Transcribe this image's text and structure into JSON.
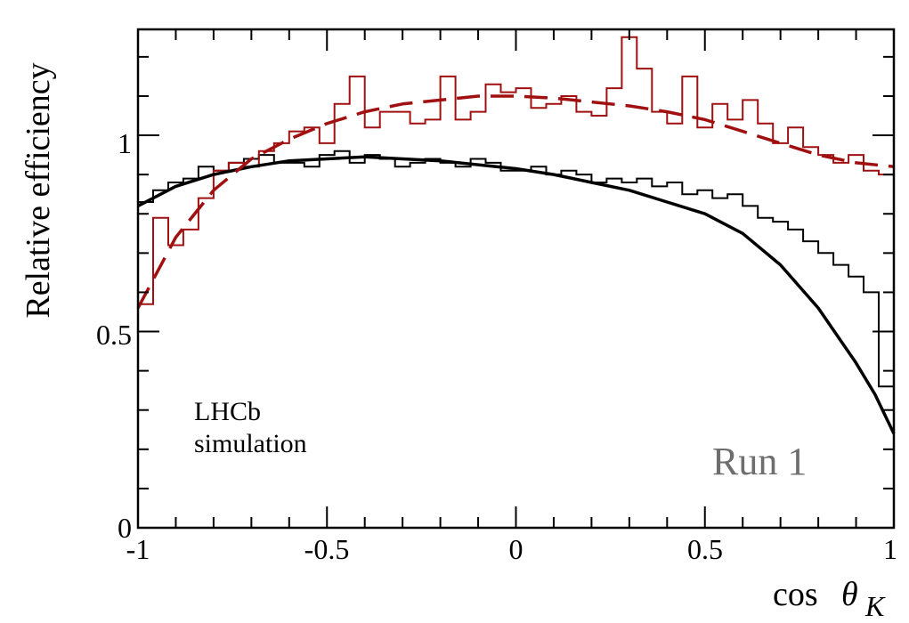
{
  "chart_data": {
    "type": "line",
    "xlabel": "cos",
    "xlabel_symbol": "θ",
    "xlabel_subscript": "K",
    "ylabel": "Relative efficiency",
    "xlim": [
      -1,
      1
    ],
    "ylim": [
      0,
      1.27
    ],
    "xticks": [
      -1,
      -0.5,
      0,
      0.5,
      1
    ],
    "xtick_labels": [
      "-1",
      "-0.5",
      "0",
      "0.5",
      "1"
    ],
    "yticks": [
      0,
      0.5,
      1
    ],
    "ytick_labels": [
      "0",
      "0.5",
      "1"
    ],
    "grid": false,
    "annotations": {
      "experiment": "LHCb",
      "subtitle": "simulation",
      "run": "Run 1"
    },
    "colors": {
      "black": "#000000",
      "red": "#a01010",
      "run_text": "#6e6e6e"
    },
    "series": [
      {
        "style": "histogram",
        "color": "#000000",
        "bin_edges_from": -1,
        "bin_width": 0.04,
        "values": [
          0.83,
          0.86,
          0.88,
          0.89,
          0.92,
          0.91,
          0.93,
          0.94,
          0.95,
          0.93,
          0.93,
          0.92,
          0.95,
          0.96,
          0.93,
          0.95,
          0.94,
          0.92,
          0.93,
          0.94,
          0.93,
          0.92,
          0.94,
          0.93,
          0.91,
          0.91,
          0.92,
          0.9,
          0.91,
          0.9,
          0.88,
          0.89,
          0.88,
          0.89,
          0.87,
          0.88,
          0.85,
          0.86,
          0.84,
          0.85,
          0.82,
          0.79,
          0.78,
          0.76,
          0.73,
          0.7,
          0.67,
          0.64,
          0.6,
          0.36,
          0.22
        ]
      },
      {
        "style": "histogram",
        "color": "#a01010",
        "bin_edges_from": -1,
        "bin_width": 0.04,
        "values": [
          0.57,
          0.79,
          0.72,
          0.76,
          0.84,
          0.91,
          0.93,
          0.92,
          0.96,
          0.98,
          1.01,
          1.02,
          0.98,
          1.08,
          1.15,
          1.02,
          1.06,
          1.06,
          1.03,
          1.04,
          1.15,
          1.04,
          1.06,
          1.13,
          1.11,
          1.12,
          1.07,
          1.08,
          1.1,
          1.06,
          1.05,
          1.12,
          1.25,
          1.17,
          1.06,
          1.03,
          1.15,
          1.02,
          1.08,
          1.04,
          1.09,
          1.03,
          0.98,
          1.02,
          0.97,
          0.95,
          0.93,
          0.95,
          0.91,
          0.9,
          0.93
        ]
      },
      {
        "style": "solid",
        "color": "#000000",
        "x": [
          -1,
          -0.9,
          -0.8,
          -0.7,
          -0.6,
          -0.5,
          -0.4,
          -0.3,
          -0.2,
          -0.1,
          0,
          0.1,
          0.2,
          0.3,
          0.4,
          0.5,
          0.6,
          0.7,
          0.8,
          0.9,
          0.95,
          1
        ],
        "y": [
          0.82,
          0.87,
          0.9,
          0.92,
          0.935,
          0.94,
          0.945,
          0.94,
          0.935,
          0.925,
          0.915,
          0.9,
          0.88,
          0.86,
          0.83,
          0.8,
          0.75,
          0.67,
          0.56,
          0.42,
          0.34,
          0.24
        ]
      },
      {
        "style": "dashed",
        "color": "#a01010",
        "x": [
          -1,
          -0.9,
          -0.8,
          -0.7,
          -0.6,
          -0.5,
          -0.4,
          -0.3,
          -0.2,
          -0.1,
          0,
          0.1,
          0.2,
          0.3,
          0.4,
          0.5,
          0.6,
          0.7,
          0.8,
          0.9,
          1
        ],
        "y": [
          0.56,
          0.74,
          0.86,
          0.94,
          0.99,
          1.03,
          1.06,
          1.08,
          1.09,
          1.1,
          1.1,
          1.095,
          1.085,
          1.075,
          1.06,
          1.04,
          1.01,
          0.98,
          0.95,
          0.93,
          0.92
        ]
      }
    ]
  }
}
